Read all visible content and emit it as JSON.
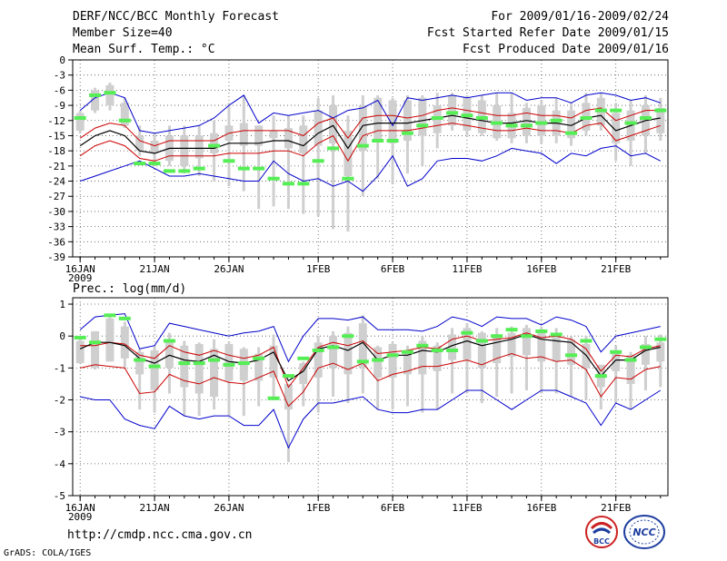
{
  "header": {
    "title": "DERF/NCC/BCC Monthly Forecast",
    "member_size": "Member Size=40",
    "variable1": "Mean Surf. Temp.: °C",
    "period": "For 2009/01/16-2009/02/24",
    "started": "Fcst Started Refer Date 2009/01/15",
    "produced": "Fcst Produced Date 2009/01/16"
  },
  "footer": {
    "url": "http://cmdp.ncc.cma.gov.cn",
    "credit": "GrADS: COLA/IGES",
    "logo_bcc_text": "BCC",
    "logo_ncc_text": "NCC"
  },
  "colors": {
    "envelope": "#0000cc",
    "sd": "#cc0000",
    "mean": "#000000",
    "box": "#cfcfcf",
    "obs": "#55ee55"
  },
  "chart_data": [
    {
      "type": "line",
      "title": "Mean Surf. Temp.: °C",
      "ylim": [
        -39,
        0
      ],
      "yticks": [
        0,
        -3,
        -6,
        -9,
        -12,
        -15,
        -18,
        -21,
        -24,
        -27,
        -30,
        -33,
        -36,
        -39
      ],
      "xlim": [
        -0.5,
        39.5
      ],
      "xtick_labels": [
        "16JAN",
        "21JAN",
        "26JAN",
        "1FEB",
        "6FEB",
        "11FEB",
        "16FEB",
        "21FEB"
      ],
      "xtick_days": [
        0,
        5,
        10,
        16,
        21,
        26,
        31,
        36
      ],
      "year_label": "2009",
      "days": 40,
      "series": [
        {
          "name": "max",
          "values": [
            -24,
            -23,
            -22,
            -21,
            -20,
            -21.5,
            -23,
            -23,
            -22.5,
            -23,
            -23.5,
            -24,
            -24,
            -20,
            -22.5,
            -24,
            -23.5,
            -25,
            -24,
            -26,
            -23,
            -19,
            -25,
            -23.5,
            -20,
            -19.5,
            -19.5,
            -20,
            -19,
            -17.5,
            -18,
            -18.5,
            -20.5,
            -18.5,
            -19,
            -17.5,
            -17,
            -19,
            -18.5,
            -20
          ]
        },
        {
          "name": "min",
          "values": [
            -10,
            -7.5,
            -6.5,
            -7.5,
            -14,
            -14.5,
            -14,
            -13.5,
            -13,
            -11.5,
            -9,
            -7,
            -12.5,
            -10.5,
            -11,
            -10.5,
            -10,
            -11.5,
            -10,
            -9.5,
            -8,
            -13,
            -7.5,
            -8,
            -7.5,
            -7,
            -7.5,
            -7,
            -6.5,
            -6.5,
            -8,
            -7.5,
            -7.5,
            -8.5,
            -7,
            -6.5,
            -7,
            -8,
            -7.5,
            -8.5
          ]
        },
        {
          "name": "plus_sd",
          "values": [
            -15.5,
            -13.5,
            -12.5,
            -13,
            -16,
            -17,
            -16,
            -16,
            -16,
            -16,
            -14.5,
            -14,
            -14,
            -14,
            -14,
            -15,
            -12.5,
            -11.5,
            -15.5,
            -11.5,
            -11,
            -11,
            -11.5,
            -11,
            -10,
            -9.5,
            -10,
            -10.5,
            -11,
            -11,
            -10.5,
            -11,
            -11,
            -11.5,
            -10,
            -9.5,
            -12,
            -11,
            -10,
            -10
          ]
        },
        {
          "name": "mean",
          "values": [
            -17,
            -15,
            -14,
            -15,
            -18,
            -18.5,
            -17.5,
            -17.5,
            -17.5,
            -17.5,
            -16.5,
            -16.5,
            -16.5,
            -16,
            -16,
            -17,
            -14.5,
            -13,
            -17.5,
            -13,
            -12.5,
            -12.5,
            -12.5,
            -12,
            -11.5,
            -11,
            -11.5,
            -12,
            -12.5,
            -12.5,
            -12,
            -12.5,
            -12.5,
            -13,
            -11.5,
            -11,
            -14,
            -13,
            -12,
            -11.5
          ]
        },
        {
          "name": "minus_sd",
          "values": [
            -19,
            -17,
            -16,
            -17,
            -19.5,
            -20,
            -19,
            -19,
            -19,
            -19,
            -18.5,
            -18.5,
            -18.5,
            -18,
            -18,
            -19,
            -16.5,
            -15,
            -20,
            -15,
            -14,
            -14,
            -14,
            -13.5,
            -13,
            -12.5,
            -13,
            -13.5,
            -14,
            -14,
            -13.5,
            -14,
            -14,
            -14.5,
            -13,
            -12.5,
            -16,
            -15,
            -14,
            -13
          ]
        },
        {
          "name": "box_top",
          "values": [
            -10.5,
            -6,
            -5,
            -8.5,
            -15,
            -16,
            -15,
            -15,
            -15,
            -14.5,
            -13,
            -12.5,
            -13,
            -14,
            -13.5,
            -13,
            -10,
            -9,
            -14,
            -9,
            -7.5,
            -8,
            -8,
            -7.5,
            -9,
            -7,
            -7.5,
            -8,
            -9,
            -10.5,
            -9.5,
            -9,
            -10,
            -10,
            -8.5,
            -7.5,
            -10.5,
            -10,
            -9,
            -9.5
          ]
        },
        {
          "name": "box_bottom",
          "values": [
            -14,
            -10,
            -9,
            -13,
            -18,
            -18.5,
            -20,
            -21,
            -19.5,
            -18.5,
            -16,
            -17,
            -17,
            -15.5,
            -17.5,
            -18.5,
            -17,
            -16.5,
            -23,
            -18,
            -16,
            -16.5,
            -16,
            -15,
            -14.5,
            -13,
            -14,
            -14.5,
            -15.5,
            -15.5,
            -15,
            -15,
            -15,
            -15.5,
            -14,
            -13,
            -16.5,
            -16,
            -15,
            -14.5
          ]
        },
        {
          "name": "whisker_top",
          "values": [
            -10,
            -5.5,
            -4.5,
            -7.5,
            -13,
            -14.5,
            -13,
            -13,
            -13,
            -12,
            -8.5,
            -7,
            -13,
            -11,
            -11,
            -11,
            -7.5,
            -7,
            -11,
            -7,
            -7,
            -7.5,
            -7,
            -7,
            -6.5,
            -6.5,
            -7,
            -7,
            -6.5,
            -6.5,
            -8.5,
            -8,
            -7.5,
            -8.5,
            -6.5,
            -6.5,
            -8.5,
            -8,
            -7,
            -7.5
          ]
        },
        {
          "name": "whisker_bottom",
          "values": [
            -14.5,
            -10.5,
            -10,
            -13.5,
            -19,
            -20,
            -21,
            -22.5,
            -23,
            -24,
            -25,
            -26,
            -29.5,
            -29,
            -29.5,
            -30.5,
            -31,
            -33.5,
            -34,
            -27,
            -23.5,
            -24.5,
            -22.5,
            -21,
            -17.5,
            -14,
            -15,
            -15,
            -16,
            -16.5,
            -16.5,
            -16.5,
            -16.5,
            -17,
            -15,
            -14,
            -20,
            -21,
            -18.5,
            -16
          ]
        },
        {
          "name": "observed",
          "values": [
            -11.5,
            -7,
            -6.5,
            -12,
            -20.5,
            -20.5,
            -22,
            -22,
            -21.5,
            -17,
            -20,
            -21.5,
            -21.5,
            -23.5,
            -24.5,
            -24.5,
            -20,
            -17.5,
            -23.5,
            -17,
            -16,
            -16,
            -14.5,
            -13,
            -11.5,
            -10.5,
            -11,
            -11.5,
            -12.5,
            -13,
            -13,
            -12.5,
            -12,
            -14.5,
            -11.5,
            -10,
            -10,
            -12.5,
            -11.5,
            -10
          ]
        }
      ]
    },
    {
      "type": "line",
      "title": "Prec.: log(mm/d)",
      "ylim": [
        -5,
        1.2
      ],
      "yticks": [
        1,
        0,
        -1,
        -2,
        -3,
        -4,
        -5
      ],
      "xlim": [
        -0.5,
        39.5
      ],
      "xtick_labels": [
        "16JAN",
        "21JAN",
        "26JAN",
        "1FEB",
        "6FEB",
        "11FEB",
        "16FEB",
        "21FEB"
      ],
      "xtick_days": [
        0,
        5,
        10,
        16,
        21,
        26,
        31,
        36
      ],
      "year_label": "2009",
      "days": 40,
      "series": [
        {
          "name": "max",
          "values": [
            -1.9,
            -2,
            -2,
            -2.6,
            -2.8,
            -2.9,
            -2.2,
            -2.5,
            -2.6,
            -2.5,
            -2.5,
            -2.8,
            -2.8,
            -2.3,
            -3.5,
            -2.6,
            -2.1,
            -2.1,
            -2,
            -1.9,
            -2.3,
            -2.4,
            -2.4,
            -2.3,
            -2.3,
            -2,
            -1.7,
            -1.7,
            -2,
            -2.3,
            -2,
            -1.7,
            -1.7,
            -1.9,
            -2.1,
            -2.8,
            -2.1,
            -2.3,
            -2,
            -1.7
          ]
        },
        {
          "name": "min",
          "values": [
            0.2,
            0.6,
            0.65,
            0.7,
            -0.4,
            -0.3,
            0.4,
            0.3,
            0.2,
            0.1,
            0,
            0.1,
            0.15,
            0.3,
            -0.8,
            0,
            0.55,
            0.55,
            0.5,
            0.6,
            0.2,
            0.2,
            0.2,
            0.15,
            0.3,
            0.6,
            0.5,
            0.3,
            0.6,
            0.55,
            0.55,
            0.35,
            0.6,
            0.5,
            0.3,
            -0.5,
            0,
            0.1,
            0.2,
            0.3
          ]
        },
        {
          "name": "plus_sd",
          "values": [
            -0.3,
            -0.3,
            -0.2,
            -0.25,
            -0.6,
            -0.7,
            -0.3,
            -0.5,
            -0.6,
            -0.45,
            -0.6,
            -0.7,
            -0.6,
            -0.35,
            -1.6,
            -1,
            -0.35,
            -0.2,
            -0.3,
            -0.15,
            -0.55,
            -0.5,
            -0.45,
            -0.35,
            -0.4,
            -0.1,
            0,
            -0.15,
            -0.1,
            -0.05,
            0.1,
            -0.05,
            0,
            -0.1,
            -0.4,
            -1.1,
            -0.6,
            -0.65,
            -0.4,
            -0.3
          ]
        },
        {
          "name": "mean",
          "values": [
            -0.4,
            -0.2,
            -0.2,
            -0.3,
            -0.7,
            -0.85,
            -0.6,
            -0.75,
            -0.8,
            -0.6,
            -0.8,
            -0.85,
            -0.75,
            -0.5,
            -1.4,
            -1.1,
            -0.4,
            -0.3,
            -0.45,
            -0.2,
            -0.75,
            -0.6,
            -0.6,
            -0.45,
            -0.5,
            -0.3,
            -0.15,
            -0.3,
            -0.2,
            -0.1,
            0.05,
            -0.1,
            -0.15,
            -0.2,
            -0.6,
            -1.25,
            -0.75,
            -0.75,
            -0.45,
            -0.35
          ]
        },
        {
          "name": "minus_sd",
          "values": [
            -1,
            -0.9,
            -0.95,
            -1,
            -1.8,
            -1.75,
            -1.2,
            -1.4,
            -1.5,
            -1.3,
            -1.45,
            -1.5,
            -1.3,
            -1.1,
            -2.2,
            -1.75,
            -1,
            -0.85,
            -1.05,
            -0.85,
            -1.4,
            -1.2,
            -1.1,
            -0.95,
            -0.95,
            -0.85,
            -0.75,
            -0.9,
            -0.7,
            -0.55,
            -0.7,
            -0.65,
            -0.8,
            -0.75,
            -1.05,
            -1.9,
            -1.3,
            -1.35,
            -1.05,
            -0.95
          ]
        },
        {
          "name": "box_top",
          "values": [
            -0.15,
            0.15,
            0.55,
            0.3,
            -0.5,
            -0.45,
            -0.15,
            -0.3,
            -0.25,
            -0.4,
            -0.25,
            -0.4,
            -0.55,
            -0.3,
            -1.5,
            -0.85,
            -0.2,
            0,
            0.1,
            0.4,
            -0.35,
            -0.25,
            -0.45,
            -0.15,
            -0.3,
            0.05,
            0.25,
            0.1,
            0.05,
            0.1,
            0.25,
            0.1,
            0.1,
            -0.1,
            -0.25,
            -0.9,
            -0.45,
            -0.6,
            -0.25,
            -0.2
          ]
        },
        {
          "name": "box_bottom",
          "values": [
            -0.85,
            -1,
            -0.8,
            -0.7,
            -1.2,
            -1.7,
            -1,
            -1.6,
            -1.8,
            -1.9,
            -1.4,
            -1.4,
            -1.4,
            -1.3,
            -2.3,
            -1.5,
            -1.3,
            -1,
            -1.2,
            -1,
            -1.3,
            -1.3,
            -1.2,
            -1.2,
            -1.1,
            -0.75,
            -0.75,
            -1,
            -0.85,
            -0.65,
            -0.6,
            -0.8,
            -0.8,
            -0.9,
            -1,
            -1.6,
            -1.1,
            -1.5,
            -0.9,
            -0.8
          ]
        },
        {
          "name": "whisker_top",
          "values": [
            0,
            0.15,
            0.6,
            0.45,
            -0.4,
            -0.3,
            0.1,
            -0.15,
            -0.2,
            -0.1,
            -0.2,
            -0.35,
            -0.35,
            0.05,
            -1.5,
            -0.8,
            0,
            0.15,
            0.3,
            0.65,
            -0.3,
            -0.2,
            -0.3,
            0,
            -0.2,
            0.25,
            0.4,
            0.15,
            0.25,
            0.3,
            0.35,
            0.3,
            0.25,
            0,
            0,
            -0.9,
            -0.3,
            -0.5,
            0,
            0.05
          ]
        },
        {
          "name": "whisker_bottom",
          "values": [
            -0.85,
            -1.05,
            -0.8,
            -1,
            -2.3,
            -2.4,
            -1.8,
            -2.5,
            -2.5,
            -2.3,
            -2.5,
            -2.5,
            -2.2,
            -1.9,
            -3.95,
            -2.2,
            -2.4,
            -1.9,
            -2.1,
            -1.8,
            -2.3,
            -2.3,
            -2.2,
            -2.4,
            -2.3,
            -1.8,
            -1.8,
            -2.1,
            -1.9,
            -1.8,
            -1.7,
            -1.8,
            -1.8,
            -1.9,
            -2,
            -2.3,
            -2.1,
            -2.3,
            -1.7,
            -1.6
          ]
        },
        {
          "name": "observed",
          "values": [
            -0.05,
            -0.2,
            0.65,
            0.55,
            -0.75,
            -0.95,
            -0.15,
            -0.85,
            -0.85,
            -0.75,
            -0.9,
            -0.85,
            -0.7,
            -1.95,
            -1.25,
            -0.7,
            -0.45,
            -0.35,
            0,
            -0.8,
            -0.75,
            -0.6,
            -0.5,
            -0.3,
            -0.45,
            -0.45,
            0.1,
            -0.15,
            0,
            0.2,
            0,
            0.15,
            0.05,
            -0.6,
            -0.15,
            -1.25,
            -0.5,
            -0.75,
            -0.35,
            -0.1
          ]
        }
      ]
    }
  ]
}
